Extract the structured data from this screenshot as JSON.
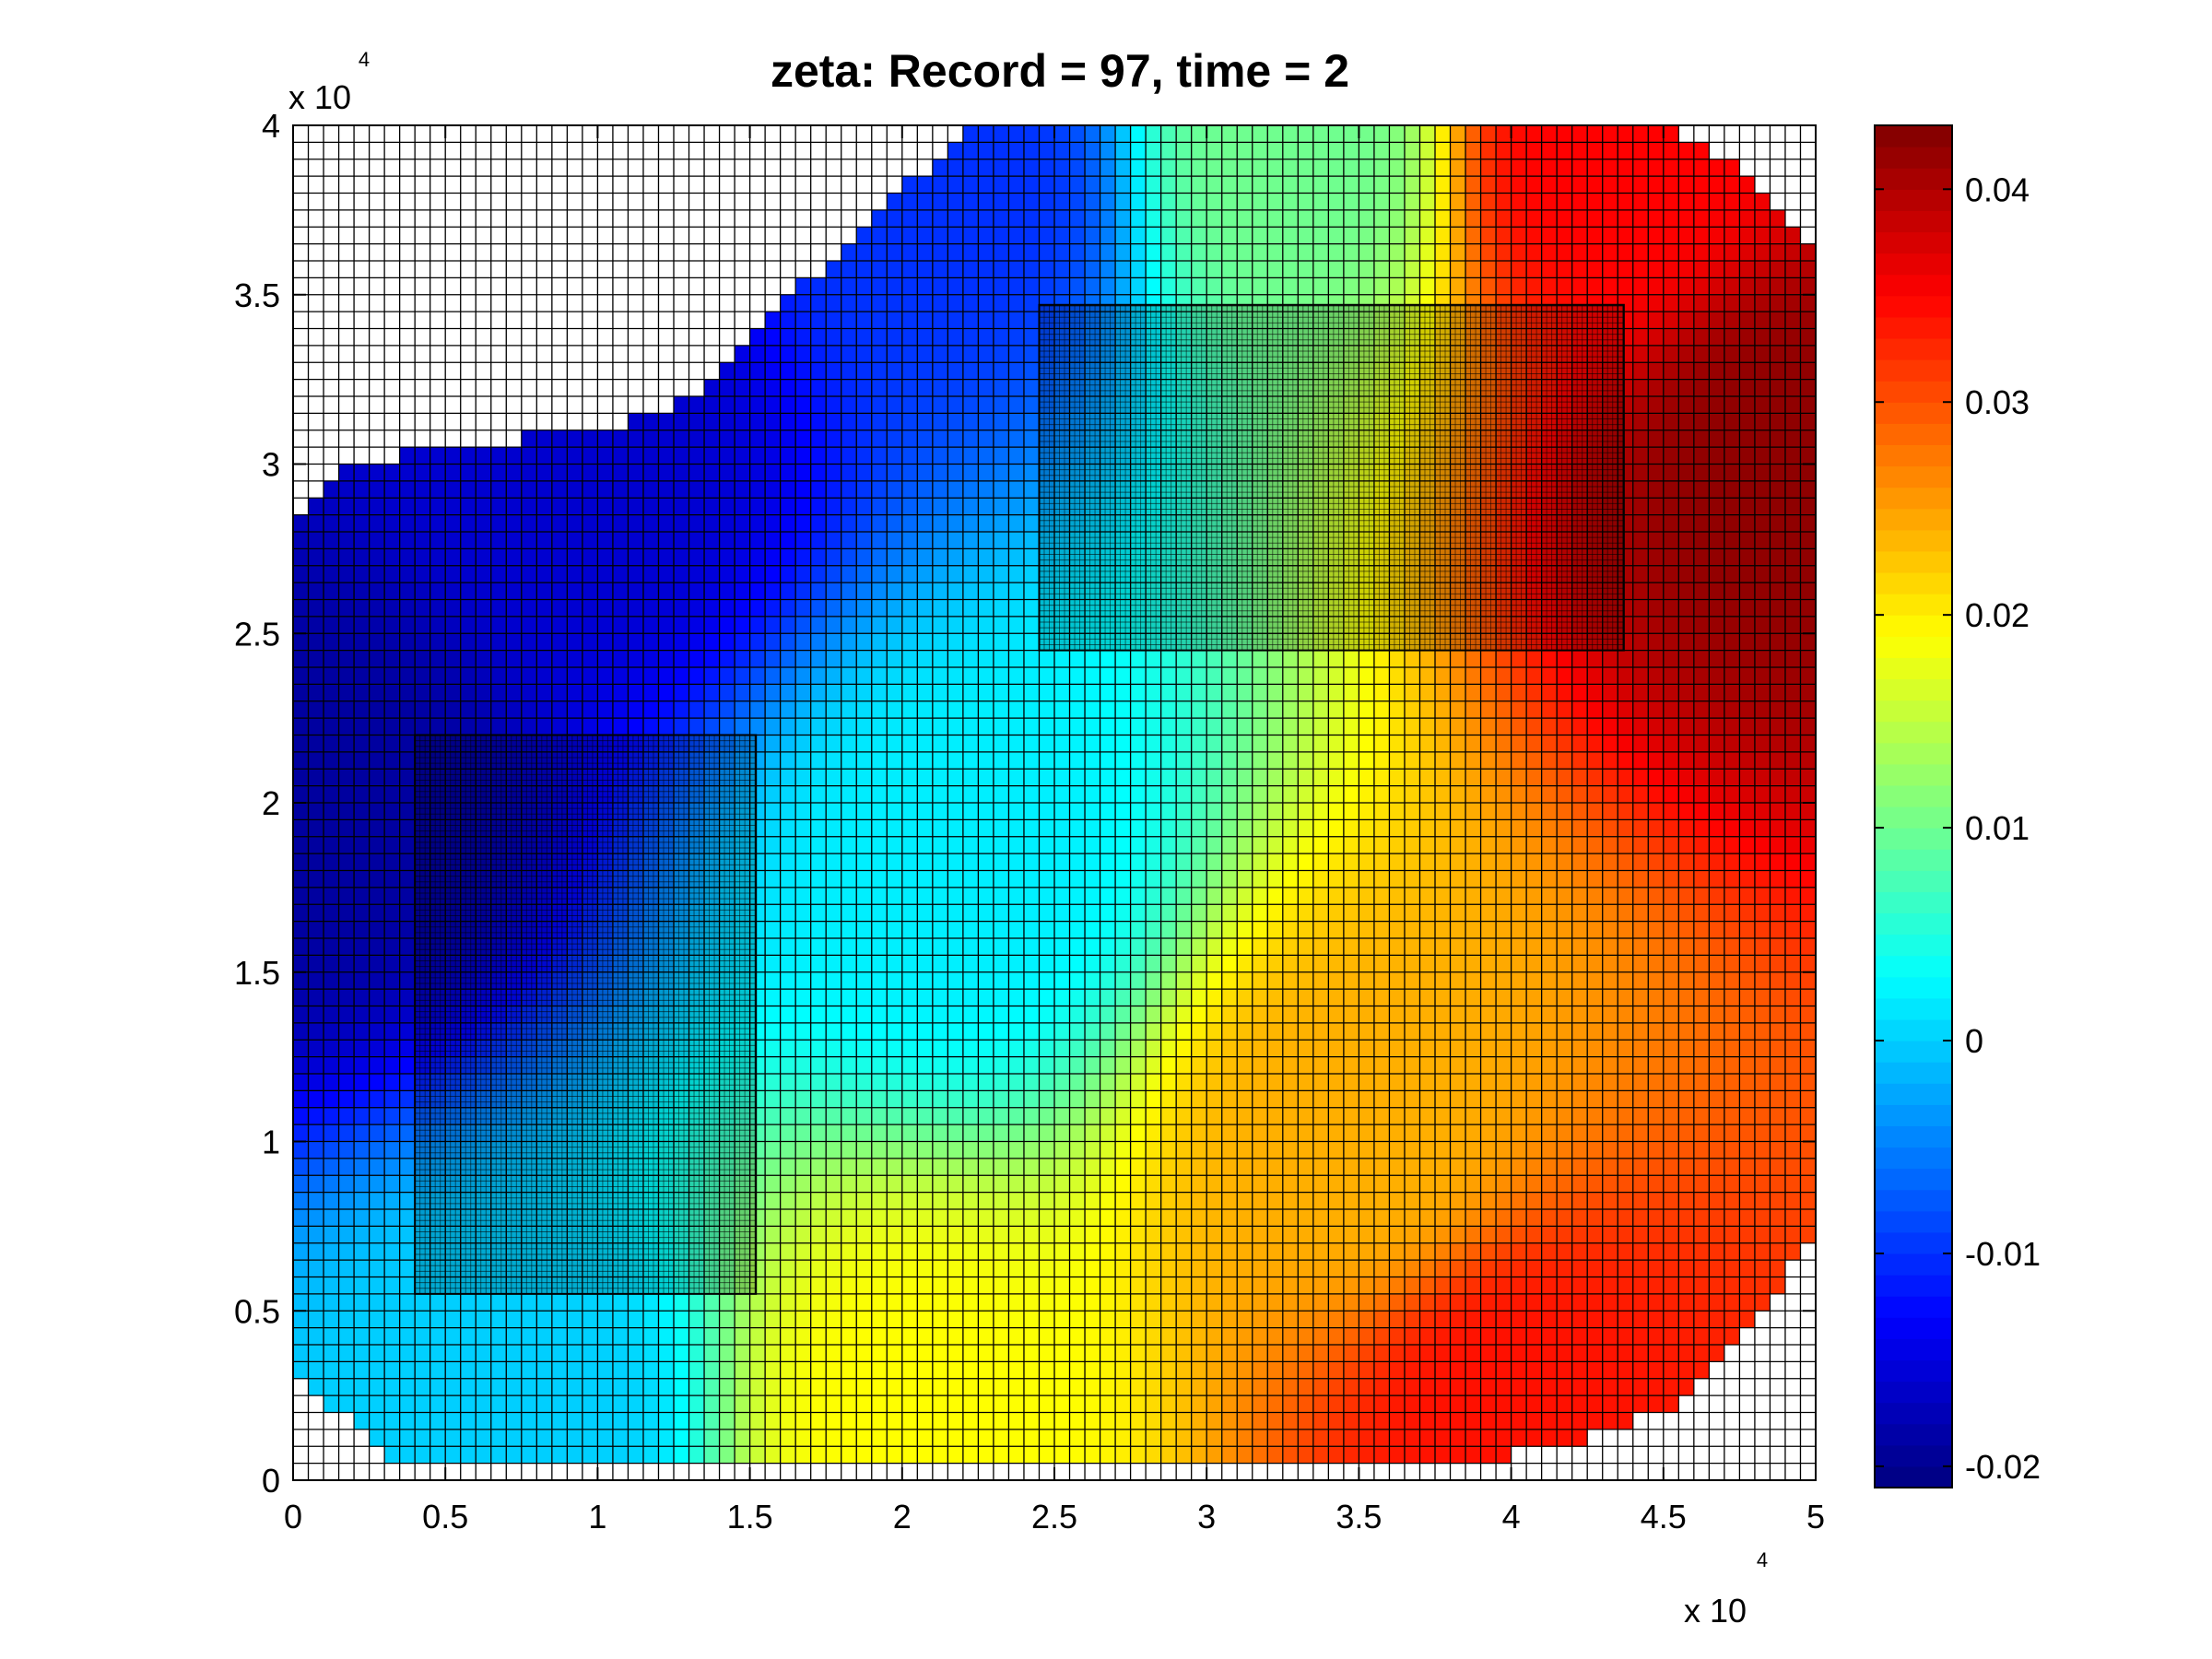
{
  "title": "zeta:    Record = 97,    time = 2",
  "chart_data": {
    "type": "heatmap",
    "title": "zeta:    Record = 97,    time = 2",
    "xlabel": "",
    "ylabel": "",
    "xlim": [
      0,
      50000
    ],
    "ylim": [
      0,
      40000
    ],
    "x_ticks": [
      0,
      5000,
      10000,
      15000,
      20000,
      25000,
      30000,
      35000,
      40000,
      45000,
      50000
    ],
    "x_tick_labels": [
      "0",
      "0.5",
      "1",
      "1.5",
      "2",
      "2.5",
      "3",
      "3.5",
      "4",
      "4.5",
      "5"
    ],
    "y_ticks": [
      0,
      5000,
      10000,
      15000,
      20000,
      25000,
      30000,
      35000,
      40000
    ],
    "y_tick_labels": [
      "0",
      "0.5",
      "1",
      "1.5",
      "2",
      "2.5",
      "3",
      "3.5",
      "4"
    ],
    "x_multiplier": "x 10",
    "x_multiplier_exp": "4",
    "y_multiplier": "x 10",
    "y_multiplier_exp": "4",
    "coarse_grid_spacing": 500,
    "refined_patches": [
      {
        "x": [
          4000,
          15200
        ],
        "y": [
          5500,
          22000
        ]
      },
      {
        "x": [
          24500,
          43700
        ],
        "y": [
          24500,
          34700
        ]
      }
    ],
    "colormap": "jet",
    "colorbar": {
      "range": [
        -0.021,
        0.043
      ],
      "ticks": [
        -0.02,
        -0.01,
        0,
        0.01,
        0.02,
        0.03,
        0.04
      ],
      "tick_labels": [
        "-0.02",
        "-0.01",
        "0",
        "0.01",
        "0.02",
        "0.03",
        "0.04"
      ]
    },
    "field_samples": [
      {
        "x": 1000,
        "y": 20000,
        "zeta": -0.019
      },
      {
        "x": 10000,
        "y": 30000,
        "zeta": -0.016
      },
      {
        "x": 22000,
        "y": 38000,
        "zeta": -0.01
      },
      {
        "x": 33000,
        "y": 39000,
        "zeta": 0.01
      },
      {
        "x": 43000,
        "y": 39000,
        "zeta": 0.035
      },
      {
        "x": 49000,
        "y": 30000,
        "zeta": 0.042
      },
      {
        "x": 22000,
        "y": 18000,
        "zeta": 0.002
      },
      {
        "x": 8000,
        "y": 2000,
        "zeta": 0.0
      },
      {
        "x": 20000,
        "y": 2000,
        "zeta": 0.019
      },
      {
        "x": 35000,
        "y": 10000,
        "zeta": 0.024
      },
      {
        "x": 40000,
        "y": 2000,
        "zeta": 0.034
      }
    ]
  }
}
